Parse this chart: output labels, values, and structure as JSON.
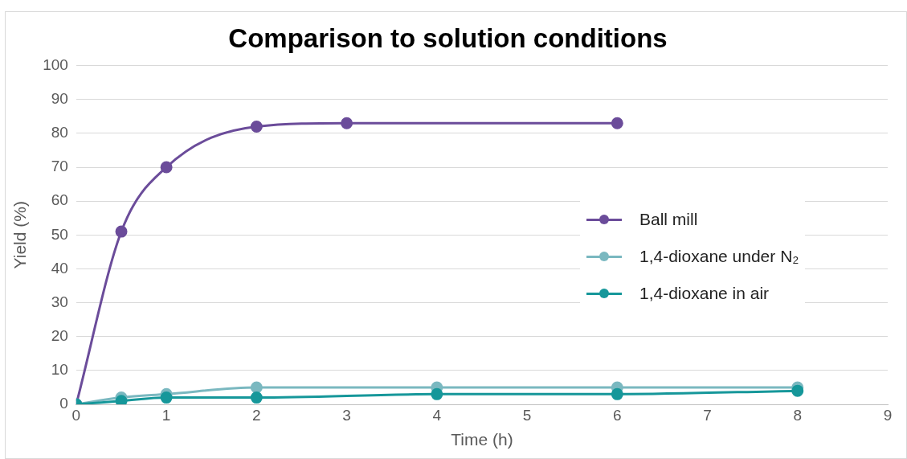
{
  "chart_data": {
    "type": "line",
    "title": "Comparison to solution conditions",
    "xlabel": "Time (h)",
    "ylabel": "Yield (%)",
    "xlim": [
      0,
      9
    ],
    "xticks": [
      0,
      1,
      2,
      3,
      4,
      5,
      6,
      7,
      8,
      9
    ],
    "ylim": [
      0,
      100
    ],
    "yticks": [
      0,
      10,
      20,
      30,
      40,
      50,
      60,
      70,
      80,
      90,
      100
    ],
    "grid": "y",
    "legend": "right",
    "marker": "circle",
    "line_style": "solid",
    "series": [
      {
        "name": "Ball mill",
        "color": "#6b4c9a",
        "x": [
          0,
          0.5,
          1,
          2,
          3,
          6
        ],
        "values": [
          0,
          51,
          70,
          82,
          83,
          83
        ]
      },
      {
        "name": "1,4-dioxane under N₂",
        "color": "#7ab8c0",
        "x": [
          0,
          0.5,
          1,
          2,
          4,
          6,
          8
        ],
        "values": [
          0,
          2,
          3,
          5,
          5,
          5,
          5
        ]
      },
      {
        "name": "1,4-dioxane in air",
        "color": "#16979a",
        "x": [
          0,
          0.5,
          1,
          2,
          4,
          6,
          8
        ],
        "values": [
          0,
          1,
          2,
          2,
          3,
          3,
          4
        ]
      }
    ]
  }
}
